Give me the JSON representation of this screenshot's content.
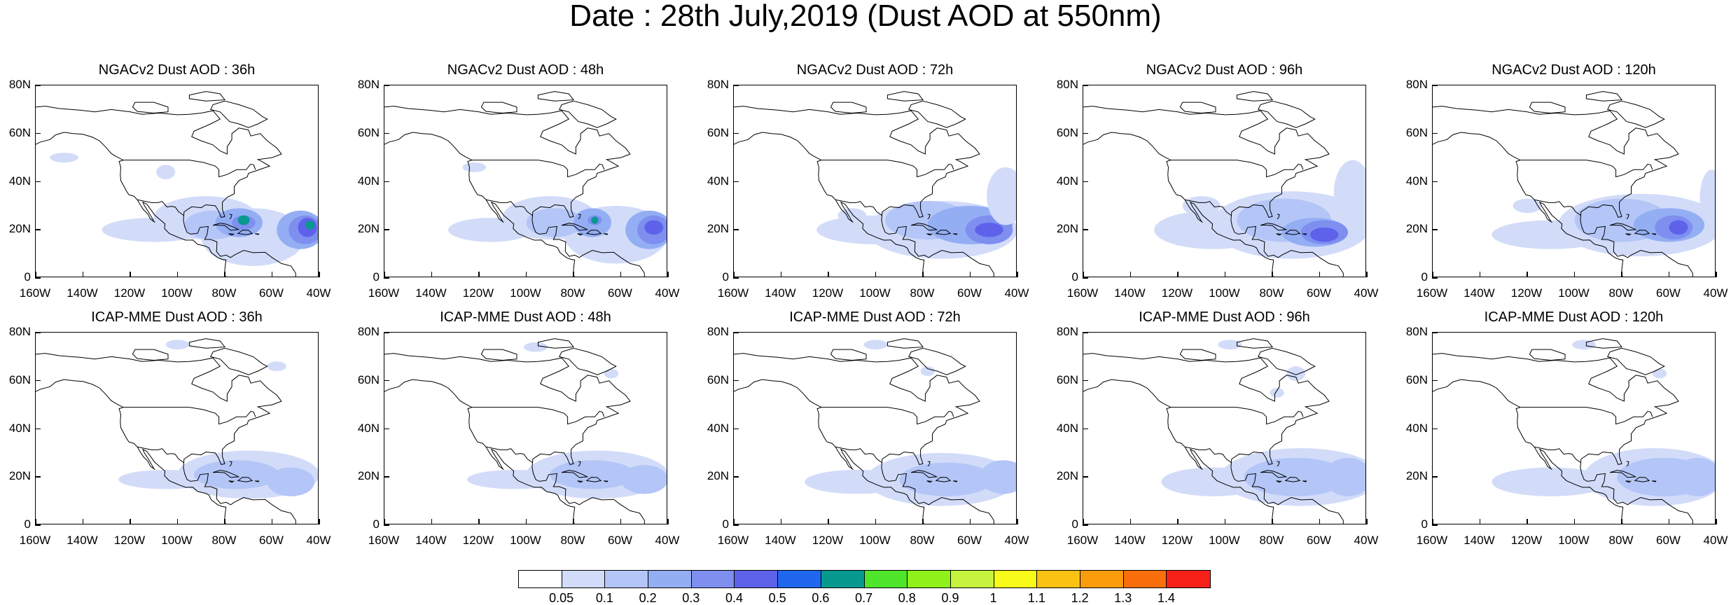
{
  "title": "Date : 28th July,2019 (Dust AOD at 550nm)",
  "axes": {
    "y_ticks": [
      "80N",
      "60N",
      "40N",
      "20N",
      "0"
    ],
    "x_ticks": [
      "160W",
      "140W",
      "120W",
      "100W",
      "80W",
      "60W",
      "40W"
    ]
  },
  "panels": [
    {
      "title": "NGACv2 Dust AOD : 36h"
    },
    {
      "title": "NGACv2 Dust AOD : 48h"
    },
    {
      "title": "NGACv2 Dust AOD : 72h"
    },
    {
      "title": "NGACv2 Dust AOD : 96h"
    },
    {
      "title": "NGACv2 Dust AOD : 120h"
    },
    {
      "title": "ICAP-MME Dust AOD : 36h"
    },
    {
      "title": "ICAP-MME Dust AOD : 48h"
    },
    {
      "title": "ICAP-MME Dust AOD : 72h"
    },
    {
      "title": "ICAP-MME Dust AOD : 96h"
    },
    {
      "title": "ICAP-MME Dust AOD : 120h"
    }
  ],
  "colorbar": {
    "labels": [
      "0.05",
      "0.1",
      "0.2",
      "0.3",
      "0.4",
      "0.5",
      "0.6",
      "0.7",
      "0.8",
      "0.9",
      "1",
      "1.1",
      "1.2",
      "1.3",
      "1.4"
    ],
    "colors": [
      "#ffffff",
      "#d2dcf9",
      "#b4c6f7",
      "#94aef4",
      "#7e8ff0",
      "#5e62ea",
      "#1f68ee",
      "#07998f",
      "#4ee52c",
      "#8ef11a",
      "#c6f43e",
      "#f8fa1a",
      "#fac314",
      "#fb9c0c",
      "#fa6f0c",
      "#f8211a"
    ]
  }
}
